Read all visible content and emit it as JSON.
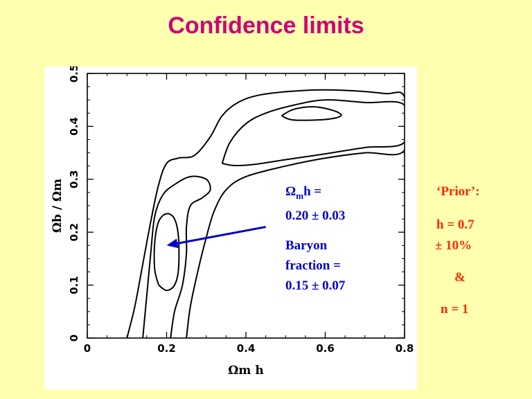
{
  "slide": {
    "title": "Confidence limits"
  },
  "annotation": {
    "line1": "Ω",
    "line1_sub": "m",
    "line1_rest": "h =",
    "line2": "0.20 ± 0.03",
    "line3": "Baryon",
    "line4": "fraction =",
    "line5": "0.15 ± 0.07"
  },
  "sidebar": {
    "prior_label": "‘Prior’:",
    "h_value": "h = 0.7",
    "h_error": "± 10%",
    "amp": "&",
    "n_value": "n = 1"
  },
  "colors": {
    "background": "#FFFFB0",
    "title": "#CC0077",
    "annotation": "#0000CC",
    "prior": "#FF2A00",
    "arrow": "#0000CC"
  },
  "chart_data": {
    "type": "contour",
    "xlabel": "Ωm h",
    "ylabel": "Ωb / Ωm",
    "xlim": [
      0,
      0.8
    ],
    "ylim": [
      0,
      0.5
    ],
    "x_ticks": [
      "0",
      "0.2",
      "0.4",
      "0.6",
      "0.8"
    ],
    "y_ticks": [
      "0",
      "0.1",
      "0.2",
      "0.3",
      "0.4",
      "0.5"
    ],
    "x_tick_values": [
      0,
      0.2,
      0.4,
      0.6,
      0.8
    ],
    "y_tick_values": [
      0,
      0.1,
      0.2,
      0.3,
      0.4,
      0.5
    ],
    "grid": false,
    "contours": [
      {
        "name": "inner-left-1sigma",
        "points": [
          [
            0.18,
            0.1
          ],
          [
            0.17,
            0.13
          ],
          [
            0.17,
            0.18
          ],
          [
            0.18,
            0.22
          ],
          [
            0.2,
            0.235
          ],
          [
            0.22,
            0.225
          ],
          [
            0.23,
            0.19
          ],
          [
            0.23,
            0.13
          ],
          [
            0.22,
            0.1
          ],
          [
            0.2,
            0.09
          ],
          [
            0.18,
            0.1
          ]
        ]
      },
      {
        "name": "inner-right-1sigma",
        "points": [
          [
            0.49,
            0.42
          ],
          [
            0.52,
            0.432
          ],
          [
            0.57,
            0.437
          ],
          [
            0.62,
            0.43
          ],
          [
            0.64,
            0.42
          ],
          [
            0.6,
            0.413
          ],
          [
            0.52,
            0.412
          ],
          [
            0.49,
            0.42
          ]
        ]
      },
      {
        "name": "mid-left-2sigma",
        "points": [
          [
            0.14,
            0.0
          ],
          [
            0.15,
            0.08
          ],
          [
            0.16,
            0.16
          ],
          [
            0.17,
            0.23
          ],
          [
            0.19,
            0.27
          ],
          [
            0.22,
            0.29
          ],
          [
            0.26,
            0.305
          ],
          [
            0.3,
            0.3
          ],
          [
            0.31,
            0.28
          ],
          [
            0.29,
            0.265
          ],
          [
            0.26,
            0.25
          ],
          [
            0.25,
            0.21
          ],
          [
            0.25,
            0.16
          ],
          [
            0.24,
            0.1
          ],
          [
            0.22,
            0.05
          ],
          [
            0.21,
            0.0
          ]
        ]
      },
      {
        "name": "mid-right-2sigma",
        "points": [
          [
            0.34,
            0.33
          ],
          [
            0.36,
            0.37
          ],
          [
            0.4,
            0.405
          ],
          [
            0.45,
            0.425
          ],
          [
            0.52,
            0.44
          ],
          [
            0.6,
            0.45
          ],
          [
            0.7,
            0.445
          ],
          [
            0.8,
            0.44
          ],
          [
            0.8,
            0.37
          ],
          [
            0.7,
            0.36
          ],
          [
            0.6,
            0.348
          ],
          [
            0.5,
            0.337
          ],
          [
            0.42,
            0.328
          ],
          [
            0.37,
            0.326
          ],
          [
            0.34,
            0.33
          ]
        ]
      },
      {
        "name": "outer-3sigma",
        "points": [
          [
            0.1,
            0.0
          ],
          [
            0.12,
            0.06
          ],
          [
            0.14,
            0.14
          ],
          [
            0.16,
            0.22
          ],
          [
            0.18,
            0.29
          ],
          [
            0.2,
            0.33
          ],
          [
            0.23,
            0.34
          ],
          [
            0.27,
            0.345
          ],
          [
            0.31,
            0.38
          ],
          [
            0.34,
            0.42
          ],
          [
            0.38,
            0.445
          ],
          [
            0.44,
            0.46
          ],
          [
            0.55,
            0.468
          ],
          [
            0.65,
            0.468
          ],
          [
            0.75,
            0.462
          ],
          [
            0.8,
            0.455
          ],
          [
            0.8,
            0.355
          ],
          [
            0.7,
            0.35
          ],
          [
            0.6,
            0.34
          ],
          [
            0.5,
            0.325
          ],
          [
            0.4,
            0.305
          ],
          [
            0.35,
            0.28
          ],
          [
            0.32,
            0.24
          ],
          [
            0.3,
            0.19
          ],
          [
            0.28,
            0.13
          ],
          [
            0.26,
            0.06
          ],
          [
            0.25,
            0.0
          ]
        ]
      }
    ],
    "arrow": {
      "from": [
        0.45,
        0.21
      ],
      "to": [
        0.2,
        0.175
      ]
    }
  }
}
